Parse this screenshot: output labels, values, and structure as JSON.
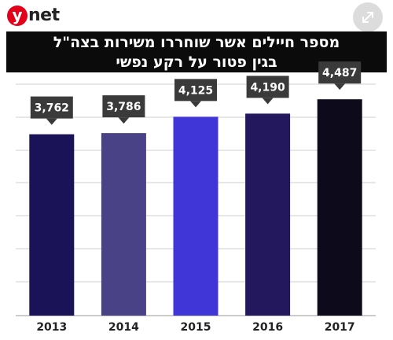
{
  "brand": {
    "logo_letter": "y",
    "logo_text": "net",
    "logo_color": "#e2001a"
  },
  "toolbar": {
    "expand_icon": "expand-arrows-icon"
  },
  "chart_data": {
    "type": "bar",
    "title_lines": [
      "מספר חיילים אשר שוחררו משירות בצה\"ל",
      "בגין פטור על רקע נפשי"
    ],
    "categories": [
      "2013",
      "2014",
      "2015",
      "2016",
      "2017"
    ],
    "values": [
      3762,
      3786,
      4125,
      4190,
      4487
    ],
    "value_labels": [
      "3,762",
      "3,786",
      "4,125",
      "4,190",
      "4,487"
    ],
    "bar_colors": [
      "#1b1358",
      "#4a4286",
      "#4035d6",
      "#23175e",
      "#0d0a1c"
    ],
    "label_box_color": "#3a3a3a",
    "xlabel": "",
    "ylabel": "",
    "ylim": [
      0,
      4800
    ],
    "grid": true,
    "legend": "none"
  }
}
